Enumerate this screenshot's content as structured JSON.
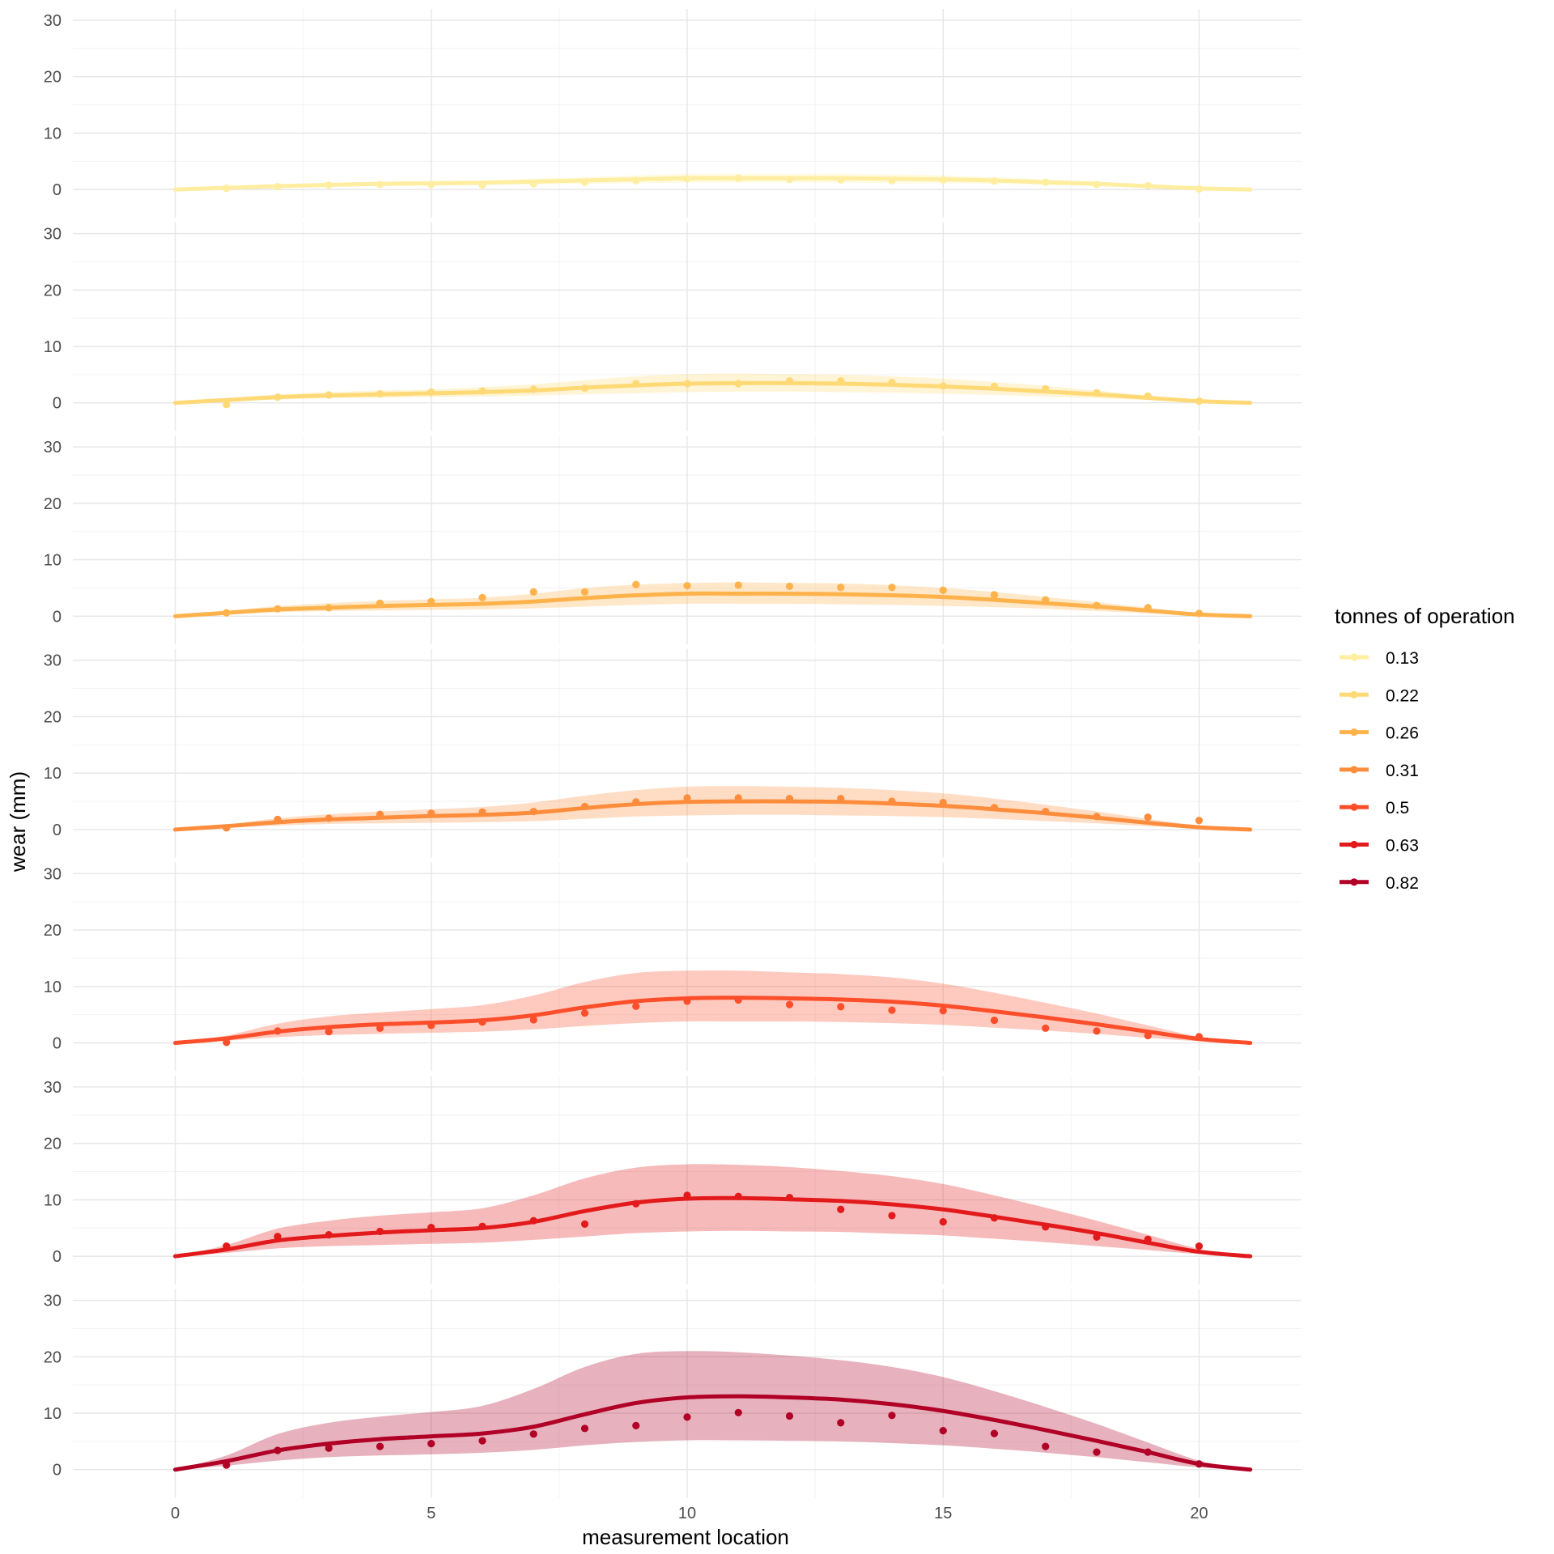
{
  "chart_data": {
    "type": "line",
    "xlabel": "measurement location",
    "ylabel": "wear (mm)",
    "xlim": [
      -2,
      22
    ],
    "ylim": [
      -5,
      32
    ],
    "x_ticks": [
      0,
      5,
      10,
      15,
      20
    ],
    "y_ticks": [
      0,
      10,
      20,
      30
    ],
    "grid": true,
    "legend": {
      "title": "tonnes of operation",
      "position": "right"
    },
    "series": [
      {
        "name": "0.13",
        "color": "#FFEDA0",
        "points": [
          0.2,
          0.5,
          0.8,
          0.9,
          0.9,
          0.8,
          1.0,
          1.3,
          1.6,
          1.9,
          2.0,
          1.8,
          1.7,
          1.6,
          1.7,
          1.5,
          1.3,
          0.9,
          0.7,
          0.1
        ],
        "fit": [
          0,
          0.3,
          0.6,
          0.8,
          1.0,
          1.1,
          1.2,
          1.4,
          1.6,
          1.8,
          2.0,
          2.0,
          2.0,
          2.0,
          1.9,
          1.8,
          1.6,
          1.3,
          1.0,
          0.6,
          0.2,
          0
        ],
        "lower": [
          0,
          0.1,
          0.3,
          0.5,
          0.6,
          0.7,
          0.8,
          0.9,
          1.0,
          1.1,
          1.2,
          1.2,
          1.2,
          1.2,
          1.1,
          1.1,
          1.0,
          0.8,
          0.6,
          0.4,
          0.1,
          0
        ],
        "upper": [
          0,
          0.5,
          0.9,
          1.2,
          1.4,
          1.5,
          1.6,
          1.9,
          2.2,
          2.5,
          2.8,
          2.8,
          2.8,
          2.8,
          2.7,
          2.5,
          2.2,
          1.8,
          1.4,
          0.8,
          0.3,
          0
        ]
      },
      {
        "name": "0.22",
        "color": "#FED976",
        "points": [
          -0.3,
          1.0,
          1.4,
          1.6,
          1.9,
          2.1,
          2.4,
          2.6,
          3.4,
          3.4,
          3.4,
          3.9,
          3.9,
          3.6,
          3.0,
          2.9,
          2.5,
          1.8,
          1.2,
          0.3
        ],
        "fit": [
          0,
          0.5,
          1.0,
          1.3,
          1.5,
          1.7,
          1.9,
          2.2,
          2.7,
          3.1,
          3.4,
          3.5,
          3.5,
          3.4,
          3.2,
          2.9,
          2.5,
          2.0,
          1.5,
          0.9,
          0.3,
          0
        ],
        "lower": [
          0,
          0.2,
          0.6,
          0.8,
          0.9,
          1.0,
          1.1,
          1.3,
          1.5,
          1.7,
          1.9,
          2.0,
          2.0,
          1.9,
          1.8,
          1.6,
          1.4,
          1.1,
          0.8,
          0.5,
          0.1,
          0
        ],
        "upper": [
          0,
          0.8,
          1.5,
          1.9,
          2.2,
          2.4,
          2.8,
          3.3,
          4.0,
          4.7,
          5.1,
          5.2,
          5.1,
          5.0,
          4.7,
          4.3,
          3.7,
          3.0,
          2.2,
          1.3,
          0.5,
          0
        ]
      },
      {
        "name": "0.26",
        "color": "#FEB24C",
        "points": [
          0.6,
          1.3,
          1.5,
          2.3,
          2.6,
          3.3,
          4.3,
          4.3,
          5.6,
          5.4,
          5.5,
          5.3,
          5.1,
          5.1,
          4.6,
          3.8,
          2.9,
          1.9,
          1.5,
          0.5
        ],
        "fit": [
          0,
          0.6,
          1.2,
          1.5,
          1.8,
          2.0,
          2.2,
          2.6,
          3.2,
          3.7,
          4.0,
          4.0,
          4.0,
          3.9,
          3.7,
          3.4,
          2.9,
          2.3,
          1.7,
          1.0,
          0.3,
          0
        ],
        "lower": [
          0,
          0.3,
          0.7,
          0.9,
          1.0,
          1.1,
          1.2,
          1.4,
          1.7,
          2.0,
          2.2,
          2.2,
          2.2,
          2.1,
          2.0,
          1.8,
          1.6,
          1.3,
          0.9,
          0.5,
          0.1,
          0
        ],
        "upper": [
          0,
          0.9,
          1.8,
          2.3,
          2.7,
          3.0,
          3.3,
          4.0,
          5.0,
          5.6,
          5.9,
          6.0,
          5.9,
          5.8,
          5.5,
          5.0,
          4.3,
          3.4,
          2.5,
          1.5,
          0.5,
          0
        ]
      },
      {
        "name": "0.31",
        "color": "#FD8D3C",
        "points": [
          0.3,
          1.8,
          2.0,
          2.7,
          2.9,
          3.1,
          3.2,
          4.1,
          4.9,
          5.6,
          5.6,
          5.5,
          5.5,
          5.0,
          4.8,
          3.9,
          3.2,
          2.3,
          2.2,
          1.6
        ],
        "fit": [
          0,
          0.6,
          1.3,
          1.8,
          2.1,
          2.4,
          2.6,
          3.0,
          3.8,
          4.5,
          4.9,
          5.0,
          5.0,
          4.9,
          4.6,
          4.2,
          3.6,
          2.9,
          2.1,
          1.2,
          0.4,
          0
        ],
        "lower": [
          0,
          0.3,
          0.7,
          1.0,
          1.1,
          1.2,
          1.3,
          1.5,
          1.9,
          2.3,
          2.5,
          2.6,
          2.6,
          2.5,
          2.4,
          2.2,
          1.9,
          1.5,
          1.1,
          0.6,
          0.2,
          0
        ],
        "upper": [
          0,
          0.9,
          2.0,
          2.7,
          3.2,
          3.6,
          4.0,
          4.8,
          6.0,
          7.0,
          7.6,
          7.7,
          7.6,
          7.4,
          7.0,
          6.4,
          5.5,
          4.4,
          3.2,
          1.9,
          0.7,
          0
        ]
      },
      {
        "name": "0.5",
        "color": "#FC4E2A",
        "points": [
          0.1,
          2.1,
          2.0,
          2.6,
          3.1,
          3.7,
          4.1,
          5.3,
          6.5,
          7.4,
          7.6,
          6.8,
          6.4,
          5.8,
          5.7,
          4.0,
          2.6,
          2.1,
          1.3,
          1.1
        ],
        "fit": [
          0,
          0.8,
          2.0,
          2.8,
          3.3,
          3.6,
          4.0,
          4.9,
          6.3,
          7.4,
          7.9,
          8.0,
          7.9,
          7.7,
          7.3,
          6.6,
          5.6,
          4.5,
          3.3,
          2.0,
          0.7,
          0
        ],
        "lower": [
          0,
          0.4,
          1.0,
          1.4,
          1.6,
          1.8,
          2.0,
          2.4,
          3.0,
          3.5,
          3.8,
          3.8,
          3.8,
          3.7,
          3.5,
          3.2,
          2.7,
          2.2,
          1.6,
          0.9,
          0.3,
          0
        ],
        "upper": [
          0,
          1.3,
          3.4,
          4.7,
          5.4,
          6.0,
          6.7,
          8.4,
          10.8,
          12.4,
          12.8,
          12.8,
          12.5,
          12.2,
          11.6,
          10.5,
          8.9,
          7.1,
          5.2,
          3.1,
          1.1,
          0
        ]
      },
      {
        "name": "0.63",
        "color": "#E31A1C",
        "points": [
          1.8,
          3.5,
          3.8,
          4.4,
          5.1,
          5.3,
          6.3,
          5.7,
          9.3,
          10.8,
          10.6,
          10.4,
          8.3,
          7.2,
          6.1,
          6.8,
          5.2,
          3.4,
          3.0,
          1.8
        ],
        "fit": [
          0,
          1.2,
          2.8,
          3.6,
          4.2,
          4.6,
          5.0,
          6.1,
          8.0,
          9.5,
          10.2,
          10.3,
          10.1,
          9.8,
          9.2,
          8.3,
          7.0,
          5.6,
          4.1,
          2.4,
          0.8,
          0
        ],
        "lower": [
          0,
          0.6,
          1.4,
          1.8,
          2.0,
          2.2,
          2.4,
          2.9,
          3.5,
          4.1,
          4.4,
          4.5,
          4.4,
          4.3,
          4.0,
          3.7,
          3.1,
          2.5,
          1.8,
          1.1,
          0.4,
          0
        ],
        "upper": [
          0,
          2.0,
          4.9,
          6.3,
          7.2,
          7.8,
          8.5,
          10.8,
          13.8,
          15.7,
          16.3,
          16.2,
          15.8,
          15.1,
          14.2,
          12.8,
          10.8,
          8.6,
          6.3,
          3.8,
          1.3,
          0
        ]
      },
      {
        "name": "0.82",
        "color": "#B10026",
        "points": [
          0.8,
          3.4,
          3.8,
          4.1,
          4.6,
          5.1,
          6.3,
          7.3,
          7.8,
          9.3,
          10.1,
          9.5,
          8.3,
          9.6,
          6.9,
          6.4,
          4.1,
          3.1,
          3.1,
          1.0
        ],
        "fit": [
          0,
          1.5,
          3.4,
          4.6,
          5.4,
          5.9,
          6.4,
          7.6,
          9.8,
          11.8,
          12.8,
          13.0,
          12.8,
          12.4,
          11.6,
          10.4,
          8.8,
          7.0,
          5.1,
          3.1,
          1.0,
          0
        ],
        "lower": [
          0,
          0.7,
          1.6,
          2.2,
          2.5,
          2.7,
          3.0,
          3.5,
          4.3,
          4.9,
          5.2,
          5.2,
          5.1,
          5.0,
          4.7,
          4.3,
          3.7,
          3.0,
          2.2,
          1.3,
          0.4,
          0
        ],
        "upper": [
          0,
          2.5,
          6.3,
          8.3,
          9.4,
          10.2,
          11.3,
          14.3,
          18.2,
          20.5,
          21.0,
          20.8,
          20.2,
          19.4,
          18.2,
          16.4,
          13.9,
          11.1,
          8.1,
          4.8,
          1.6,
          0
        ]
      }
    ]
  }
}
